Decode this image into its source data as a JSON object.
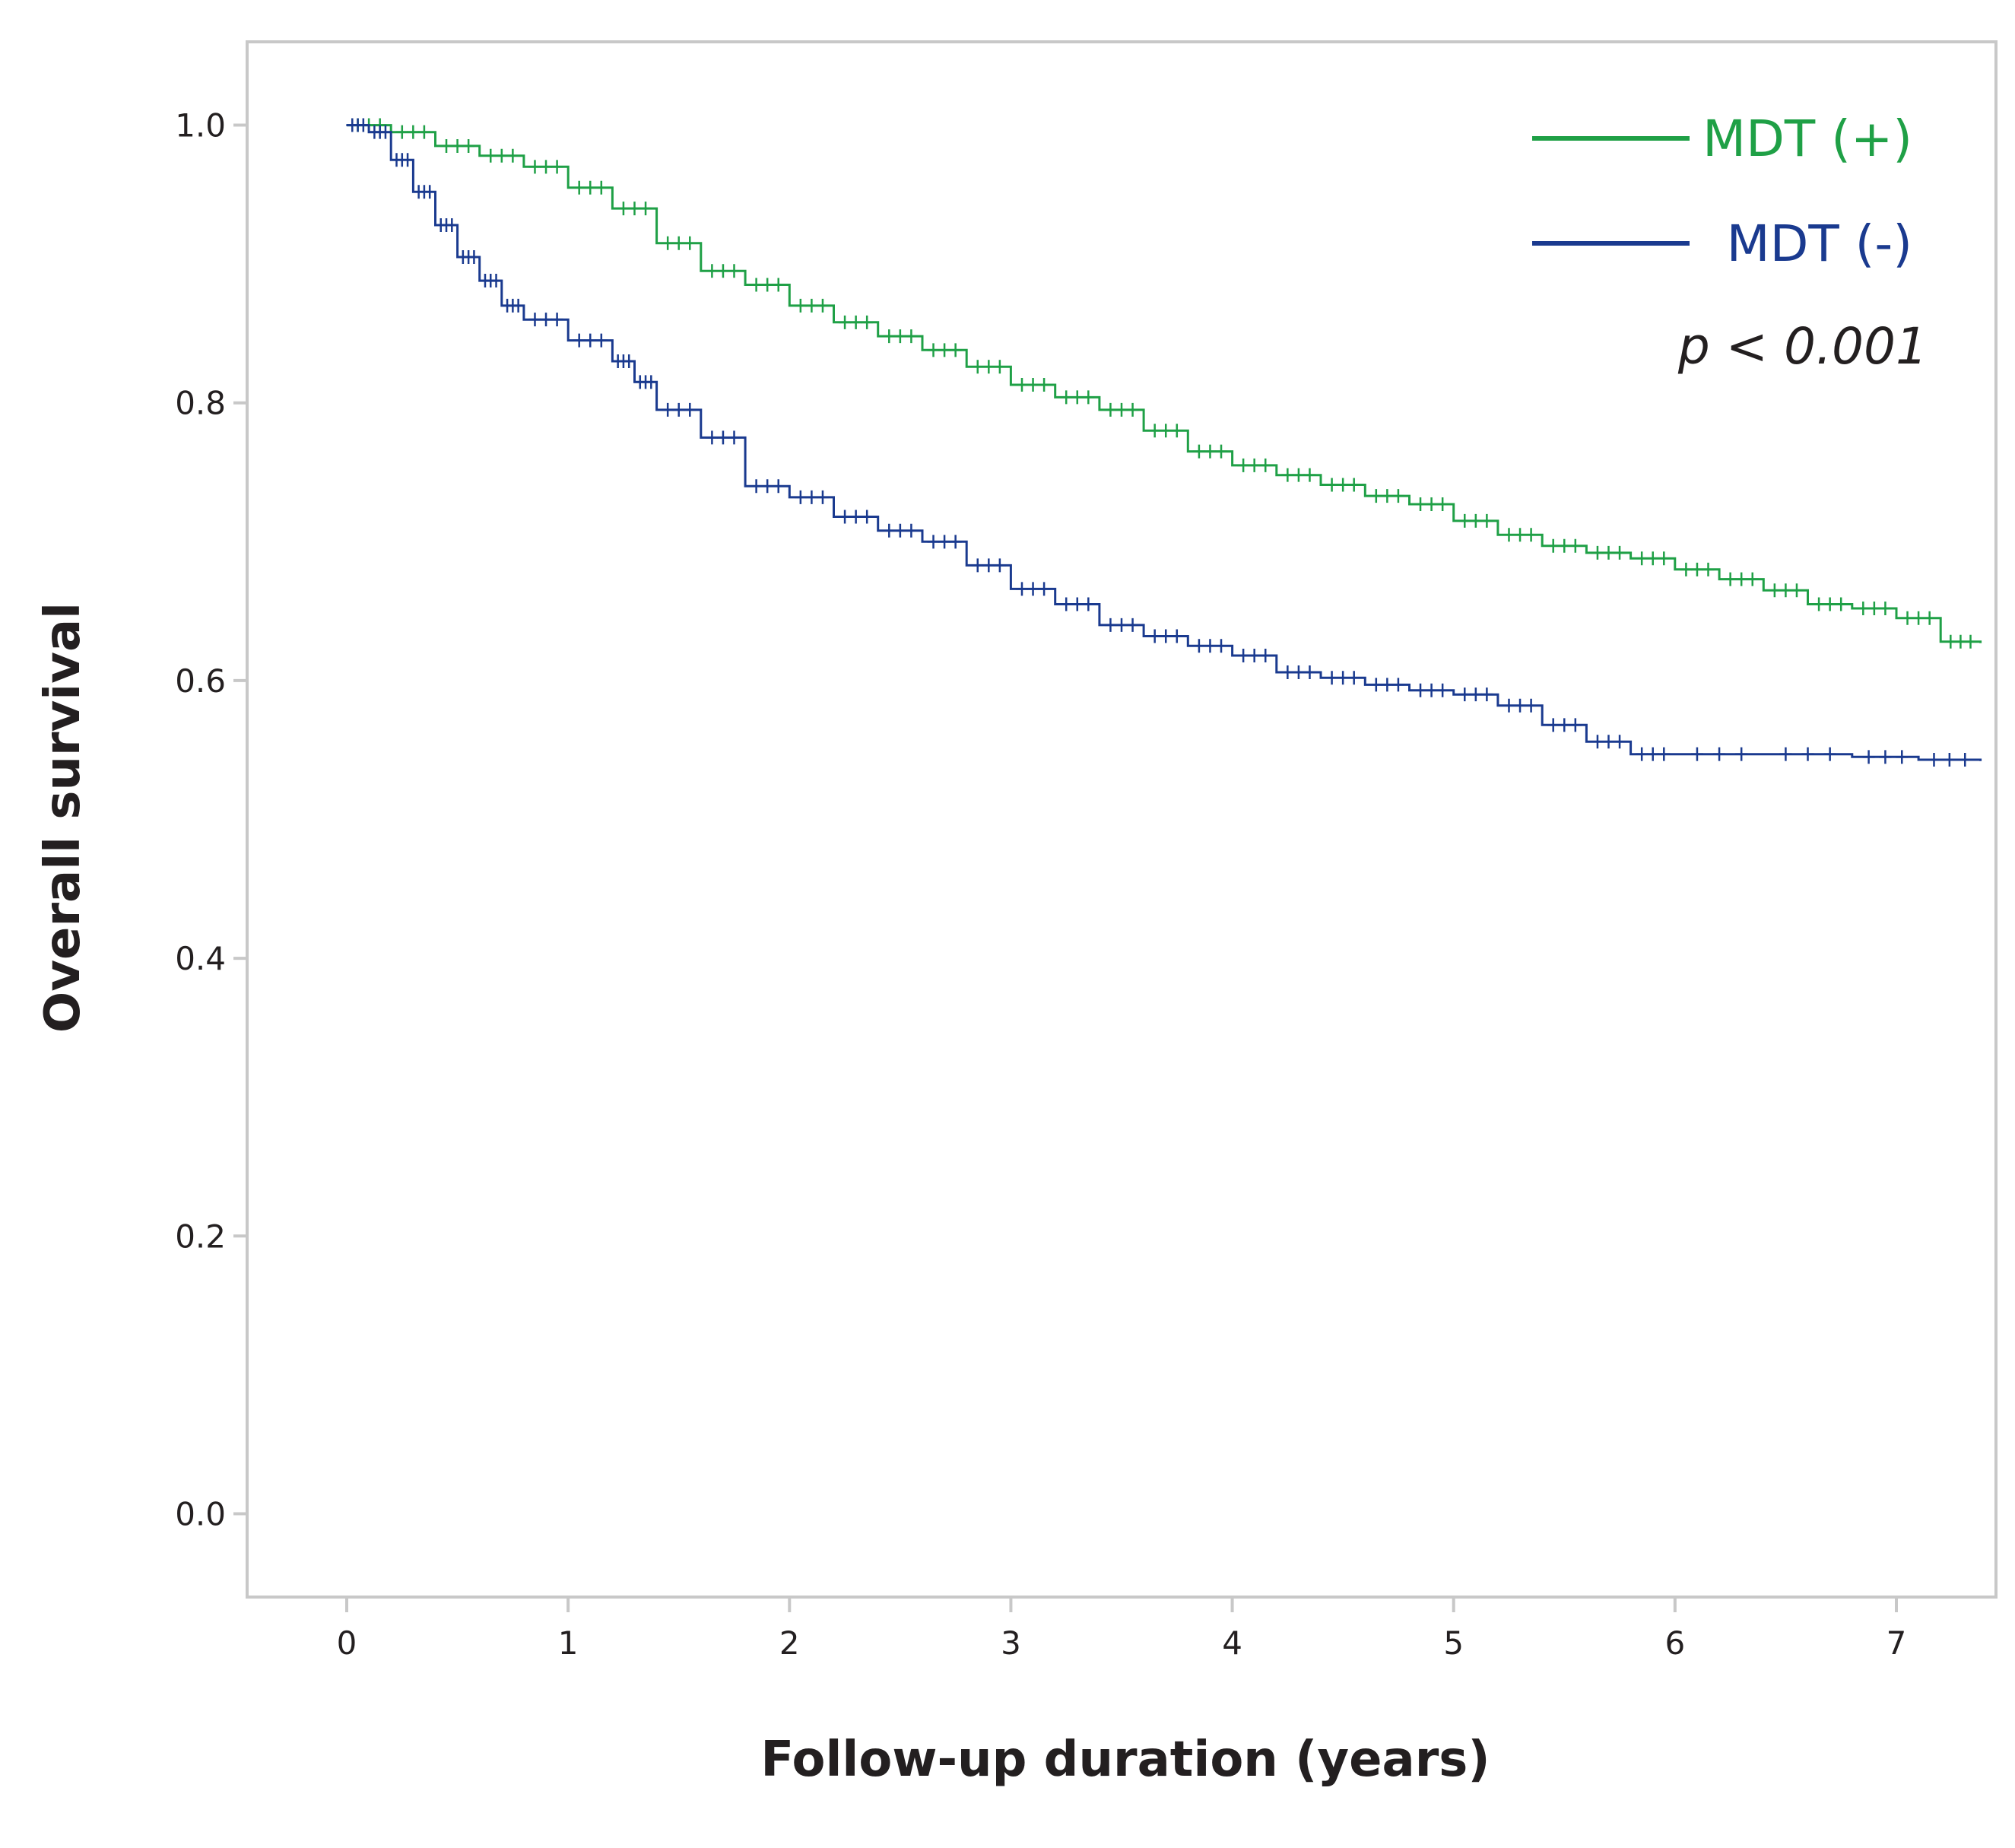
{
  "chart_data": {
    "type": "line",
    "xlabel": "Follow-up duration (years)",
    "ylabel": "Overall survival",
    "xlim": [
      -0.45,
      7.45
    ],
    "ylim": [
      -0.06,
      1.06
    ],
    "xticks": [
      "0",
      "1",
      "2",
      "3",
      "4",
      "5",
      "6",
      "7"
    ],
    "xtick_values": [
      0,
      1,
      2,
      3,
      4,
      5,
      6,
      7
    ],
    "yticks": [
      "0.0",
      "0.2",
      "0.4",
      "0.6",
      "0.8",
      "1.0"
    ],
    "ytick_values": [
      0.0,
      0.2,
      0.4,
      0.6,
      0.8,
      1.0
    ],
    "grid": false,
    "legend_position": "top-right",
    "annotation": "p < 0.001",
    "series": [
      {
        "name": "MDT (+)",
        "color": "#1fa046",
        "x": [
          0,
          0.2,
          0.4,
          0.6,
          0.8,
          1.0,
          1.2,
          1.4,
          1.6,
          1.8,
          2.0,
          2.2,
          2.4,
          2.6,
          2.8,
          3.0,
          3.2,
          3.4,
          3.6,
          3.8,
          4.0,
          4.2,
          4.4,
          4.6,
          4.8,
          5.0,
          5.2,
          5.4,
          5.6,
          5.8,
          6.0,
          6.2,
          6.4,
          6.6,
          6.8,
          7.0,
          7.2,
          7.38
        ],
        "y": [
          1.0,
          0.995,
          0.985,
          0.978,
          0.97,
          0.955,
          0.94,
          0.915,
          0.895,
          0.885,
          0.87,
          0.858,
          0.848,
          0.838,
          0.826,
          0.813,
          0.804,
          0.795,
          0.78,
          0.765,
          0.755,
          0.748,
          0.741,
          0.733,
          0.727,
          0.715,
          0.705,
          0.697,
          0.692,
          0.688,
          0.68,
          0.673,
          0.665,
          0.655,
          0.652,
          0.645,
          0.628,
          0.627
        ]
      },
      {
        "name": "MDT (-)",
        "color": "#1a3a8f",
        "x": [
          0,
          0.1,
          0.2,
          0.3,
          0.4,
          0.5,
          0.6,
          0.7,
          0.8,
          1.0,
          1.2,
          1.3,
          1.4,
          1.6,
          1.8,
          2.0,
          2.2,
          2.4,
          2.6,
          2.8,
          3.0,
          3.2,
          3.4,
          3.6,
          3.8,
          4.0,
          4.2,
          4.4,
          4.6,
          4.8,
          5.0,
          5.2,
          5.4,
          5.6,
          5.8,
          6.0,
          6.4,
          6.8,
          7.1,
          7.38
        ],
        "y": [
          1.0,
          0.995,
          0.975,
          0.952,
          0.928,
          0.905,
          0.888,
          0.87,
          0.86,
          0.845,
          0.83,
          0.815,
          0.795,
          0.775,
          0.74,
          0.732,
          0.718,
          0.708,
          0.7,
          0.683,
          0.666,
          0.655,
          0.64,
          0.632,
          0.625,
          0.618,
          0.606,
          0.602,
          0.597,
          0.593,
          0.59,
          0.582,
          0.568,
          0.556,
          0.547,
          0.547,
          0.547,
          0.545,
          0.543,
          0.542
        ]
      }
    ]
  }
}
